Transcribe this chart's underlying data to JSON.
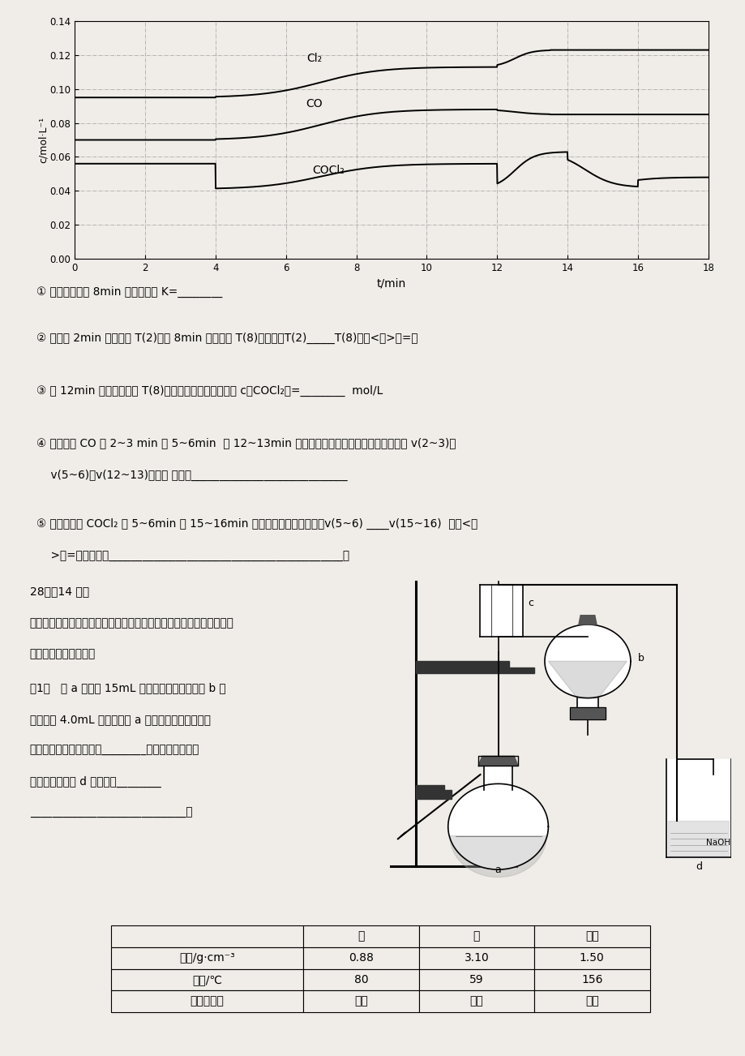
{
  "graph": {
    "xlabel": "t/min",
    "ylabel": "c/mol·L⁻¹",
    "xlim": [
      0,
      18
    ],
    "ylim": [
      0.0,
      0.14
    ],
    "yticks": [
      0.0,
      0.02,
      0.04,
      0.06,
      0.08,
      0.1,
      0.12,
      0.14
    ],
    "xticks": [
      0,
      2,
      4,
      6,
      8,
      10,
      12,
      14,
      16,
      18
    ],
    "cl2_label": "Cl₂",
    "co_label": "CO",
    "cocl2_label": "COCl₂"
  },
  "q27_lines": [
    [
      "①",
      " 计算反应在第 8min 时平衡常数 K=________"
    ],
    [
      "②",
      " 比较第 2min 反应温度 T(2)与第 8min 反应温度 T(8)的高低：T(2)_____T(8)（填<、>或=）"
    ],
    [
      "③",
      " 若 12min 时反应于温度 T(8)下重新达到平衡，则此时 c（COCl₂）=________  mol/L"
    ],
    [
      "④",
      " 比较产物 CO 在 2~3 min 和 5~6min  和 12~13min 时平均反应速率｛平均反应速率分别以 v(2~3)、"
    ],
    [
      "",
      "    v(5~6)、v(12~13)表示｝ 的大小____________________________"
    ],
    [
      "⑤",
      " 比较反应物 COCl₂ 在 5~6min 和 15~16min 时平均反应速率的大小：v(5~6) ____v(15~16)  （填<、"
    ],
    [
      "",
      "    >或=），原因是__________________________________________。"
    ]
  ],
  "q28_title": "28、（14 分）",
  "q28_intro1": "渴苯是一种化工原料，实验室合成渴苯的装置示意图及有关数据如下：",
  "q28_intro2": "按合成步骤回答问题：",
  "q28_q1a": "（1）   在 a 中加入 15mL 无水苯和少量鐵屑。在 b 中",
  "q28_q1b": "小心加入 4.0mL 液态渴。向 a 中滴入几滴渴，有白色",
  "q28_q1c": "烟雾生成，是因为生成了________气体。继续滴加至",
  "q28_q1d": "液渴滴完。装置 d 的作用是________",
  "q28_q1e": "____________________________。",
  "table_col_headers": [
    "",
    "苯",
    "渴",
    "渴苯"
  ],
  "table_rows": [
    [
      "密度/g·cm⁻³",
      "0.88",
      "3.10",
      "1.50"
    ],
    [
      "沸点/℃",
      "80",
      "59",
      "156"
    ],
    [
      "水中溶解度",
      "微溶",
      "微溶",
      "微溶"
    ]
  ],
  "bg_color": "#f0ede8"
}
